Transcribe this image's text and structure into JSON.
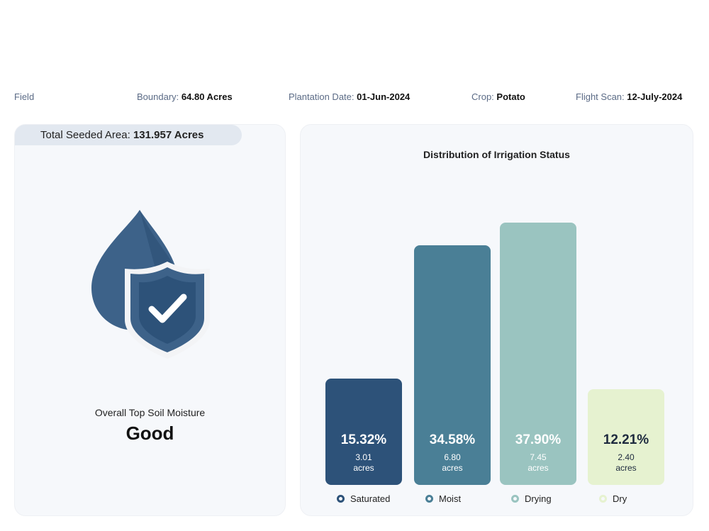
{
  "header": {
    "field_label": "Field",
    "boundary_label": "Boundary:",
    "boundary_value": "64.80 Acres",
    "plantation_label": "Plantation Date:",
    "plantation_value": "01-Jun-2024",
    "crop_label": "Crop:",
    "crop_value": "Potato",
    "flight_label": "Flight Scan:",
    "flight_value": "12-July-2024"
  },
  "left": {
    "seeded_label": "Total Seeded Area:",
    "seeded_value": "131.957 Acres",
    "moisture_label": "Overall Top Soil Moisture",
    "moisture_value": "Good",
    "icon": "water-drop-shield-check-icon"
  },
  "chart_data": {
    "type": "bar",
    "title": "Distribution of Irrigation Status",
    "categories": [
      "Saturated",
      "Moist",
      "Drying",
      "Dry"
    ],
    "values": [
      15.32,
      34.58,
      37.9,
      12.21
    ],
    "labels": [
      "15.32%",
      "34.58%",
      "37.90%",
      "12.21%"
    ],
    "acres": [
      "3.01",
      "6.80",
      "7.45",
      "2.40"
    ],
    "unit": "acres",
    "colors": [
      "#2d5279",
      "#4a7f96",
      "#9ac4c0",
      "#e6f2d0"
    ],
    "text_colors": [
      "#ffffff",
      "#ffffff",
      "#ffffff",
      "#1d2a3e"
    ],
    "legend_placement": "bottom"
  }
}
